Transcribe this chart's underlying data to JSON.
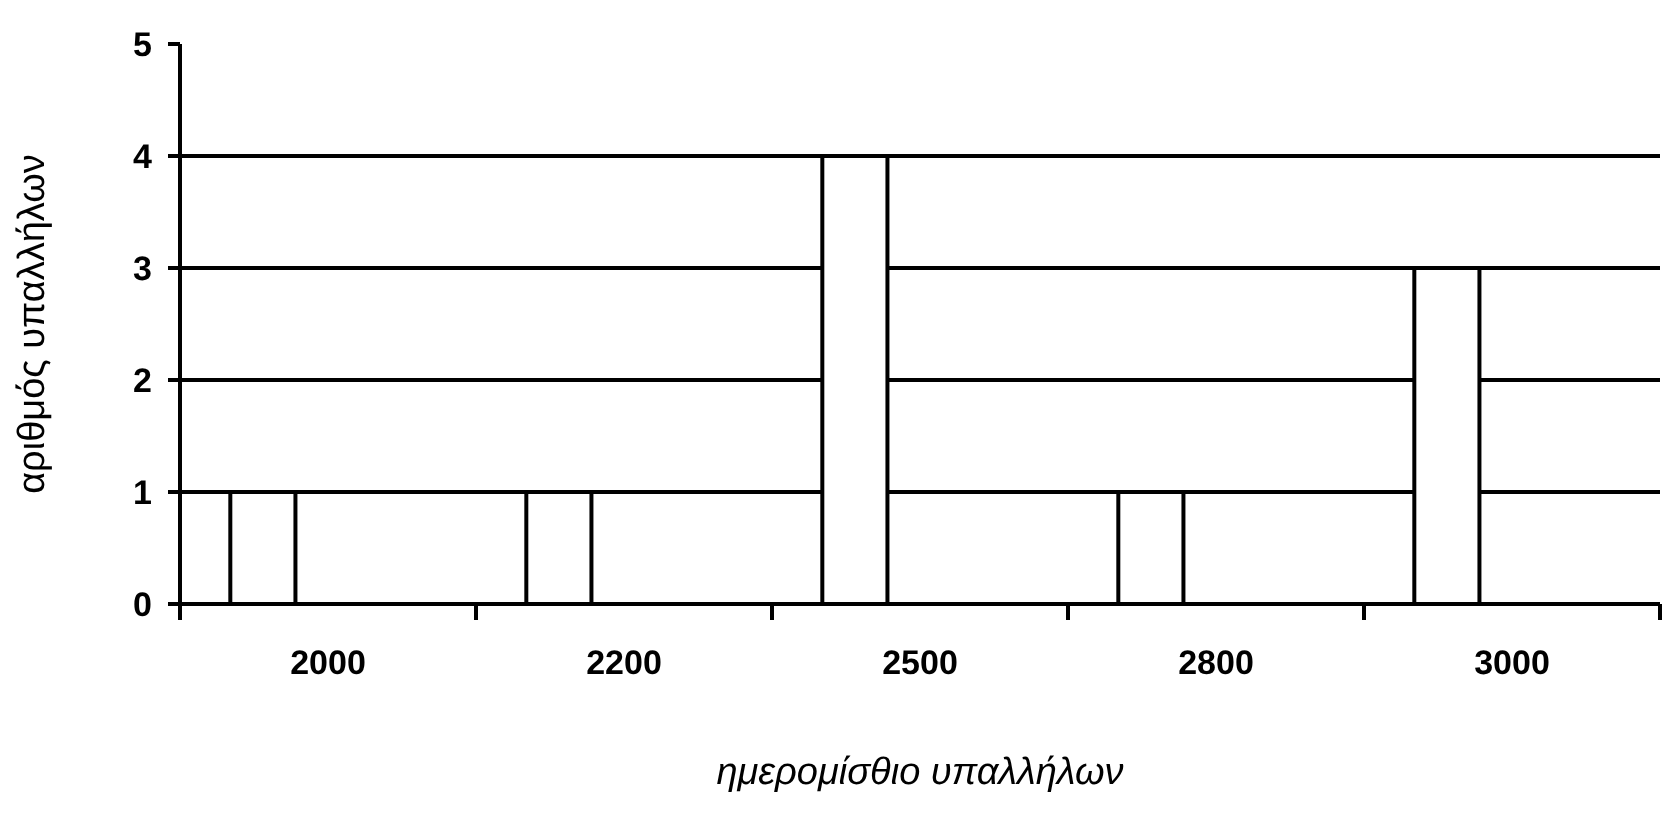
{
  "chart_data": {
    "type": "bar",
    "xlabel": "ημερομίσθιο υπαλλήλων",
    "ylabel": "αριθμός υπαλλήλων",
    "categories": [
      "2000",
      "2200",
      "2500",
      "2800",
      "3000"
    ],
    "values": [
      1,
      1,
      4,
      1,
      3
    ],
    "color": "#ffffff",
    "ylim": [
      0,
      5
    ],
    "yticks": [
      0,
      1,
      2,
      3,
      4,
      5
    ],
    "grid": "y"
  }
}
